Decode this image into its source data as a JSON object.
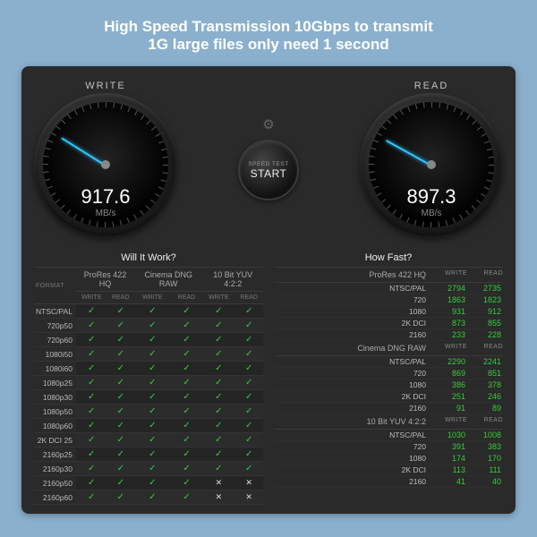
{
  "headline_line1": "High Speed Transmission 10Gbps to transmit",
  "headline_line2": "1G large files only need 1 second",
  "app": {
    "write_label": "WRITE",
    "read_label": "READ",
    "write_value": "917.6",
    "read_value": "897.3",
    "unit": "MB/s",
    "start_label_small": "SPEED TEST",
    "start_label_big": "START",
    "write_needle_angle": -148,
    "read_needle_angle": -151,
    "tick_count": 48,
    "needle_color": "#2fc6ff",
    "check_color": "#3acb3a"
  },
  "panels": {
    "will_title": "Will It Work?",
    "fast_title": "How Fast?",
    "format_label": "FORMAT",
    "sub_write": "WRITE",
    "sub_read": "READ",
    "codecs": [
      "ProRes 422 HQ",
      "Cinema DNG RAW",
      "10 Bit YUV 4:2:2"
    ],
    "rows": [
      {
        "label": "NTSC/PAL",
        "cells": [
          "c",
          "c",
          "c",
          "c",
          "c",
          "c"
        ]
      },
      {
        "label": "720p50",
        "cells": [
          "c",
          "c",
          "c",
          "c",
          "c",
          "c"
        ]
      },
      {
        "label": "720p60",
        "cells": [
          "c",
          "c",
          "c",
          "c",
          "c",
          "c"
        ]
      },
      {
        "label": "1080i50",
        "cells": [
          "c",
          "c",
          "c",
          "c",
          "c",
          "c"
        ]
      },
      {
        "label": "1080i60",
        "cells": [
          "c",
          "c",
          "c",
          "c",
          "c",
          "c"
        ]
      },
      {
        "label": "1080p25",
        "cells": [
          "c",
          "c",
          "c",
          "c",
          "c",
          "c"
        ]
      },
      {
        "label": "1080p30",
        "cells": [
          "c",
          "c",
          "c",
          "c",
          "c",
          "c"
        ]
      },
      {
        "label": "1080p50",
        "cells": [
          "c",
          "c",
          "c",
          "c",
          "c",
          "c"
        ]
      },
      {
        "label": "1080p60",
        "cells": [
          "c",
          "c",
          "c",
          "c",
          "c",
          "c"
        ]
      },
      {
        "label": "2K DCI 25",
        "cells": [
          "c",
          "c",
          "c",
          "c",
          "c",
          "c"
        ]
      },
      {
        "label": "2160p25",
        "cells": [
          "c",
          "c",
          "c",
          "c",
          "c",
          "c"
        ]
      },
      {
        "label": "2160p30",
        "cells": [
          "c",
          "c",
          "c",
          "c",
          "c",
          "c"
        ]
      },
      {
        "label": "2160p50",
        "cells": [
          "c",
          "c",
          "c",
          "c",
          "x",
          "x"
        ]
      },
      {
        "label": "2160p60",
        "cells": [
          "c",
          "c",
          "c",
          "c",
          "x",
          "x"
        ]
      }
    ],
    "fast_groups": [
      {
        "title": "ProRes 422 HQ",
        "rows": [
          {
            "label": "NTSC/PAL",
            "write": "2794",
            "read": "2735"
          },
          {
            "label": "720",
            "write": "1863",
            "read": "1823"
          },
          {
            "label": "1080",
            "write": "931",
            "read": "912"
          },
          {
            "label": "2K DCI",
            "write": "873",
            "read": "855"
          },
          {
            "label": "2160",
            "write": "233",
            "read": "228"
          }
        ]
      },
      {
        "title": "Cinema DNG RAW",
        "rows": [
          {
            "label": "NTSC/PAL",
            "write": "2290",
            "read": "2241"
          },
          {
            "label": "720",
            "write": "869",
            "read": "851"
          },
          {
            "label": "1080",
            "write": "386",
            "read": "378"
          },
          {
            "label": "2K DCI",
            "write": "251",
            "read": "246"
          },
          {
            "label": "2160",
            "write": "91",
            "read": "89"
          }
        ]
      },
      {
        "title": "10 Bit YUV 4:2:2",
        "rows": [
          {
            "label": "NTSC/PAL",
            "write": "1030",
            "read": "1008"
          },
          {
            "label": "720",
            "write": "391",
            "read": "383"
          },
          {
            "label": "1080",
            "write": "174",
            "read": "170"
          },
          {
            "label": "2K DCI",
            "write": "113",
            "read": "111"
          },
          {
            "label": "2160",
            "write": "41",
            "read": "40"
          }
        ]
      }
    ]
  }
}
